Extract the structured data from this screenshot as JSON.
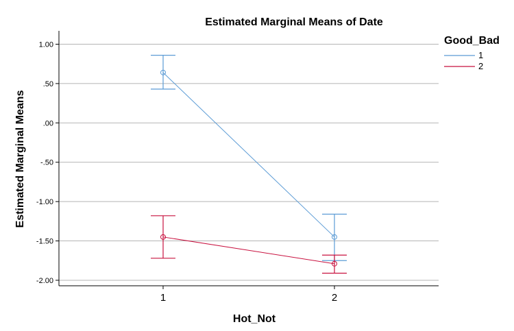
{
  "chart_data": {
    "type": "line",
    "title": "Estimated Marginal Means of Date",
    "xlabel": "Hot_Not",
    "ylabel": "Estimated Marginal Means",
    "categories": [
      "1",
      "2"
    ],
    "ylim": [
      -2.07,
      1.17
    ],
    "yticks": [
      1.0,
      0.5,
      0.0,
      -0.5,
      -1.0,
      -1.5,
      -2.0
    ],
    "ytick_labels": [
      "1.00",
      ".50",
      ".00",
      "-.50",
      "-1.00",
      "-1.50",
      "-2.00"
    ],
    "grid": true,
    "legend": {
      "title": "Good_Bad",
      "placement": "right"
    },
    "series": [
      {
        "name": "1",
        "color": "#5b9bd5",
        "values": [
          0.64,
          -1.45
        ],
        "lower": [
          0.43,
          -1.75
        ],
        "upper": [
          0.86,
          -1.16
        ]
      },
      {
        "name": "2",
        "color": "#c8103e",
        "values": [
          -1.45,
          -1.79
        ],
        "lower": [
          -1.72,
          -1.91
        ],
        "upper": [
          -1.18,
          -1.68
        ]
      }
    ]
  }
}
